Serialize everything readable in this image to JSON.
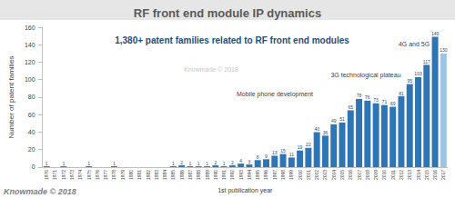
{
  "chart_data": {
    "type": "bar",
    "title": "RF front end module IP dynamics",
    "subtitle": "1,380+ patent families related to RF front end modules",
    "x_label": "1st publication year",
    "y_label": "Number of patent families",
    "annotations": [
      "Mobile phone development",
      "3G technological plateau",
      "4G and 5G",
      "Knowmade © 2018",
      "Knowmade © 2018"
    ],
    "categories": [
      "1970",
      "1971",
      "1972",
      "1973",
      "1974",
      "1975",
      "1976",
      "1977",
      "1978",
      "1979",
      "1980",
      "1981",
      "1982",
      "1983",
      "1984",
      "1985",
      "1986",
      "1987",
      "1988",
      "1989",
      "1990",
      "1991",
      "1992",
      "1993",
      "1994",
      "1995",
      "1996",
      "1997",
      "1998",
      "1999",
      "2000",
      "2001",
      "2002",
      "2003",
      "2004",
      "2005",
      "2006",
      "2007",
      "2008",
      "2009",
      "2010",
      "2011",
      "2012",
      "2013",
      "2014",
      "2015",
      "2016",
      "2017"
    ],
    "values": [
      1,
      null,
      1,
      null,
      null,
      1,
      null,
      null,
      1,
      null,
      null,
      null,
      null,
      null,
      null,
      1,
      2,
      1,
      1,
      1,
      2,
      1,
      2,
      4,
      3,
      8,
      9,
      13,
      15,
      11,
      19,
      22,
      40,
      36,
      49,
      51,
      65,
      78,
      76,
      73,
      71,
      69,
      81,
      95,
      103,
      117,
      149,
      130
    ],
    "colors": [
      "#2e75b6",
      "#2e75b6",
      "#2e75b6",
      "#2e75b6",
      "#2e75b6",
      "#2e75b6",
      "#2e75b6",
      "#2e75b6",
      "#2e75b6",
      "#2e75b6",
      "#2e75b6",
      "#2e75b6",
      "#2e75b6",
      "#2e75b6",
      "#2e75b6",
      "#2e75b6",
      "#2e75b6",
      "#2e75b6",
      "#2e75b6",
      "#2e75b6",
      "#2e75b6",
      "#2e75b6",
      "#2e75b6",
      "#2e75b6",
      "#2e75b6",
      "#2e75b6",
      "#2e75b6",
      "#2e75b6",
      "#2e75b6",
      "#2e75b6",
      "#2e75b6",
      "#2e75b6",
      "#2e75b6",
      "#2e75b6",
      "#2e75b6",
      "#2e75b6",
      "#2e75b6",
      "#2e75b6",
      "#2e75b6",
      "#2e75b6",
      "#2e75b6",
      "#2e75b6",
      "#2e75b6",
      "#2e75b6",
      "#2e75b6",
      "#2e75b6",
      "#2e75b6",
      "#9dc3e6"
    ],
    "ylim": [
      0,
      160
    ],
    "yticks": [
      0,
      20,
      40,
      60,
      80,
      100,
      120,
      140,
      160
    ],
    "grid": false,
    "data_labels": true
  }
}
